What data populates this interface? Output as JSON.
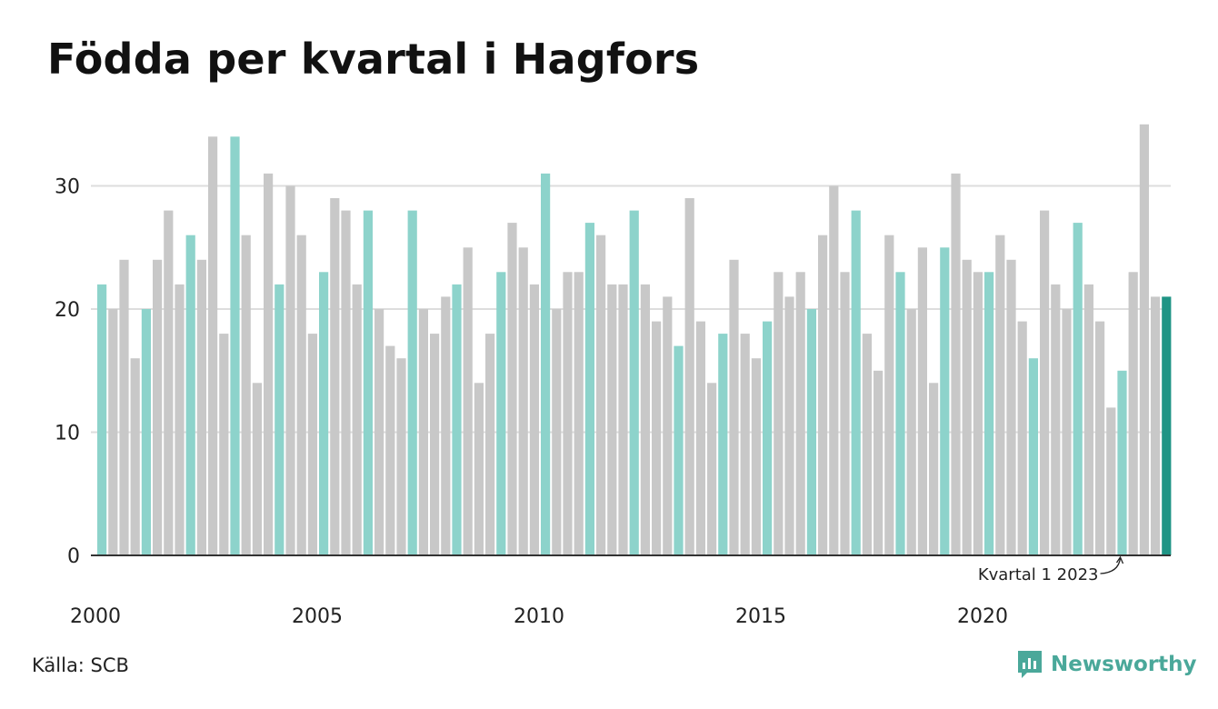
{
  "title": "Födda per kvartal i Hagfors",
  "source": "Källa: SCB",
  "brand": "Newsworthy",
  "colors": {
    "bar_q1": "#8dd3cb",
    "bar_other": "#c8c8c8",
    "bar_highlight": "#1f9485",
    "grid": "#dddddd",
    "axis": "#333333",
    "brand": "#4aa89a"
  },
  "chart_data": {
    "type": "bar",
    "grid": true,
    "ylim": [
      0,
      35
    ],
    "yticks": [
      0,
      10,
      20,
      30
    ],
    "xtick_labels": [
      "2000",
      "2005",
      "2010",
      "2015",
      "2020"
    ],
    "annotation": "Kvartal 1 2023",
    "start_year": 2000,
    "values": [
      22,
      20,
      24,
      16,
      20,
      24,
      28,
      22,
      26,
      24,
      34,
      18,
      34,
      26,
      14,
      31,
      22,
      30,
      26,
      18,
      23,
      29,
      28,
      22,
      28,
      20,
      17,
      16,
      28,
      20,
      18,
      21,
      22,
      25,
      14,
      18,
      23,
      27,
      25,
      22,
      31,
      20,
      23,
      23,
      27,
      26,
      22,
      22,
      28,
      22,
      19,
      21,
      17,
      29,
      19,
      14,
      18,
      24,
      18,
      16,
      19,
      23,
      21,
      23,
      20,
      26,
      30,
      23,
      28,
      18,
      15,
      26,
      23,
      20,
      25,
      14,
      25,
      31,
      24,
      23,
      23,
      26,
      24,
      19,
      16,
      28,
      22,
      20,
      27,
      22,
      19,
      12,
      15,
      23,
      35,
      21,
      21
    ]
  }
}
